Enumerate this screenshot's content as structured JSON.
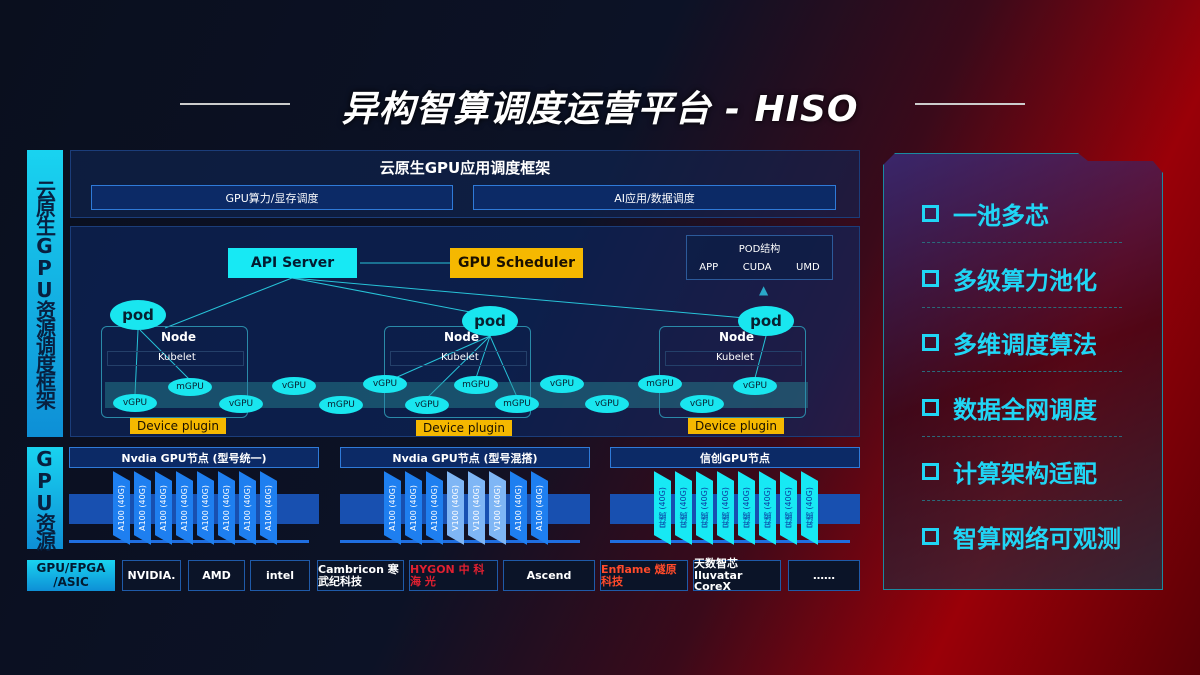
{
  "title": "异构智算调度运营平台 - HISO",
  "left_labels": {
    "top": "云原生GPU资源调度框架",
    "bottom": "GPU资源"
  },
  "app_framework": {
    "title": "云原生GPU应用调度框架",
    "boxes": [
      "GPU算力/显存调度",
      "AI应用/数据调度"
    ]
  },
  "scheduler": {
    "api_server": "API Server",
    "gpu_scheduler": "GPU Scheduler",
    "pod_structure": {
      "title": "POD结构",
      "items": [
        "APP",
        "CUDA",
        "UMD"
      ]
    },
    "pod_label": "pod",
    "node_label": "Node",
    "kubelet_label": "Kubelet",
    "device_plugin": "Device plugin",
    "gpus": [
      "vGPU",
      "mGPU",
      "vGPU",
      "vGPU",
      "mGPU",
      "vGPU",
      "vGPU",
      "mGPU",
      "mGPU",
      "vGPU",
      "vGPU",
      "mGPU",
      "vGPU",
      "vGPU"
    ]
  },
  "gpu_groups": [
    {
      "title": "Nvdia GPU节点 (型号统一)",
      "chips": [
        "A100 (40G)",
        "A100 (40G)",
        "A100 (40G)",
        "A100 (40G)",
        "A100 (40G)",
        "A100 (40G)",
        "A100 (40G)",
        "A100 (40G)"
      ]
    },
    {
      "title": "Nvdia GPU节点 (型号混搭)",
      "chips": [
        "A100 (40G)",
        "A100 (40G)",
        "A100 (40G)",
        "V100 (40G)",
        "V100 (40G)",
        "V100 (40G)",
        "A100 (40G)",
        "A100 (40G)"
      ]
    },
    {
      "title": "信创GPU节点",
      "chips": [
        "昇腾 (40G)",
        "昇腾 (40G)",
        "昇腾 (40G)",
        "昇腾 (40G)",
        "昇腾 (40G)",
        "昇腾 (40G)",
        "昇腾 (40G)",
        "昇腾 (40G)"
      ]
    }
  ],
  "vendors": {
    "label": "GPU/FPGA /ASIC",
    "logos": [
      "NVIDIA.",
      "AMD",
      "intel",
      "Cambricon 寒武纪科技",
      "HYGON 中 科 海 光",
      "Ascend",
      "Enflame 燧原科技",
      "天数智芯 Iluvatar CoreX",
      "……"
    ]
  },
  "features": [
    "一池多芯",
    "多级算力池化",
    "多维调度算法",
    "数据全网调度",
    "计算架构适配",
    "智算网络可观测"
  ],
  "colors": {
    "cyan": "#17e9f4",
    "yellow": "#f5b800",
    "chip_a100": "#1e7ff0",
    "chip_v100": "#7fb6f5",
    "chip_ascend": "#17e9f4"
  }
}
